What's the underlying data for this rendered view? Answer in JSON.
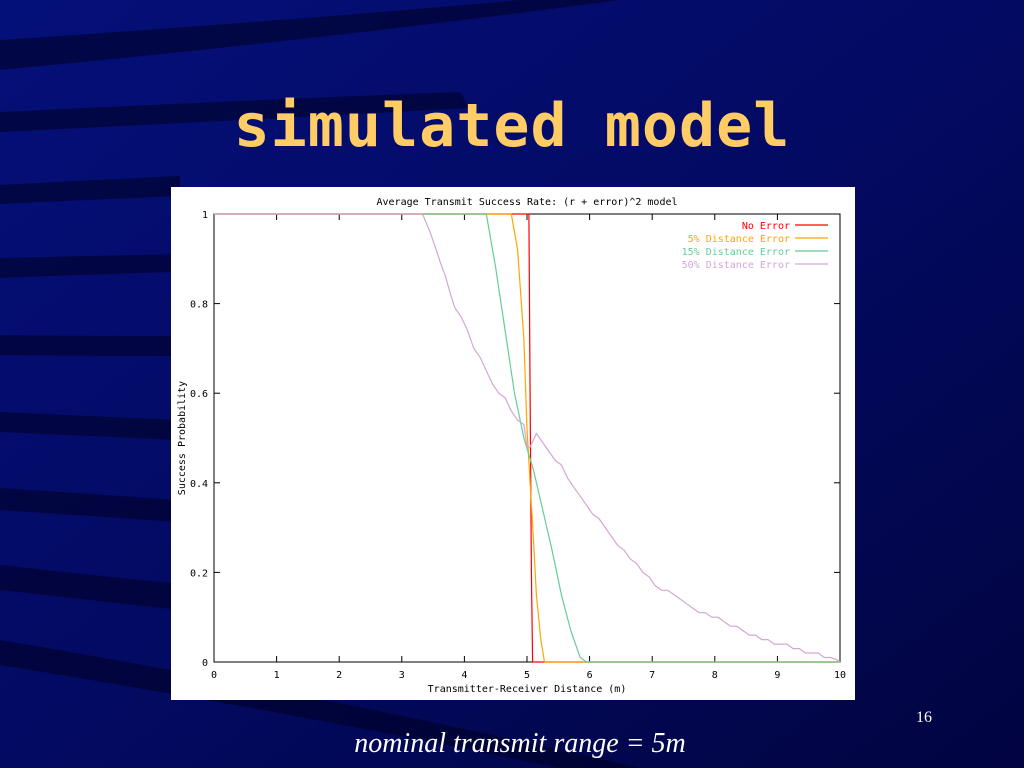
{
  "slide": {
    "title": "simulated model",
    "caption": "nominal transmit range = 5m",
    "page_number": "16",
    "colors": {
      "background": "#02064a",
      "title": "#ffcc66",
      "text": "#ffffff"
    }
  },
  "chart_data": {
    "type": "line",
    "title": "Average Transmit Success Rate: (r + error)^2 model",
    "xlabel": "Transmitter-Receiver Distance (m)",
    "ylabel": "Success Probability",
    "xlim": [
      0,
      10
    ],
    "ylim": [
      0,
      1
    ],
    "x_ticks": [
      "0",
      "1",
      "2",
      "3",
      "4",
      "5",
      "6",
      "7",
      "8",
      "9",
      "10"
    ],
    "y_ticks": [
      "0",
      "0.2",
      "0.4",
      "0.6",
      "0.8",
      "1"
    ],
    "grid": false,
    "legend_position": "top-right",
    "series": [
      {
        "name": "No Error",
        "color": "#ff0000",
        "points": [
          [
            0,
            1
          ],
          [
            5.03,
            1
          ],
          [
            5.05,
            0.6
          ],
          [
            5.07,
            0.2
          ],
          [
            5.09,
            0
          ],
          [
            10,
            0
          ]
        ]
      },
      {
        "name": "5% Distance Error",
        "color": "#ffa500",
        "points": [
          [
            0,
            1
          ],
          [
            4.75,
            1
          ],
          [
            4.85,
            0.92
          ],
          [
            4.95,
            0.72
          ],
          [
            5.0,
            0.52
          ],
          [
            5.05,
            0.4
          ],
          [
            5.1,
            0.28
          ],
          [
            5.15,
            0.15
          ],
          [
            5.22,
            0.05
          ],
          [
            5.28,
            0
          ],
          [
            10,
            0
          ]
        ]
      },
      {
        "name": "15% Distance Error",
        "color": "#66cc99",
        "points": [
          [
            0,
            1
          ],
          [
            4.35,
            1
          ],
          [
            4.5,
            0.88
          ],
          [
            4.65,
            0.74
          ],
          [
            4.8,
            0.6
          ],
          [
            4.95,
            0.5
          ],
          [
            5.1,
            0.43
          ],
          [
            5.25,
            0.34
          ],
          [
            5.4,
            0.25
          ],
          [
            5.55,
            0.15
          ],
          [
            5.7,
            0.07
          ],
          [
            5.85,
            0.01
          ],
          [
            5.95,
            0
          ],
          [
            10,
            0
          ]
        ]
      },
      {
        "name": "50% Distance Error",
        "color": "#d4a6d4",
        "points": [
          [
            0,
            1
          ],
          [
            3.33,
            1
          ],
          [
            3.45,
            0.96
          ],
          [
            3.55,
            0.92
          ],
          [
            3.62,
            0.89
          ],
          [
            3.7,
            0.86
          ],
          [
            3.78,
            0.82
          ],
          [
            3.85,
            0.79
          ],
          [
            3.95,
            0.77
          ],
          [
            4.05,
            0.74
          ],
          [
            4.15,
            0.7
          ],
          [
            4.25,
            0.68
          ],
          [
            4.35,
            0.65
          ],
          [
            4.45,
            0.62
          ],
          [
            4.55,
            0.6
          ],
          [
            4.65,
            0.59
          ],
          [
            4.75,
            0.56
          ],
          [
            4.85,
            0.54
          ],
          [
            4.95,
            0.53
          ],
          [
            5.0,
            0.48
          ],
          [
            5.05,
            0.48
          ],
          [
            5.15,
            0.51
          ],
          [
            5.25,
            0.49
          ],
          [
            5.35,
            0.47
          ],
          [
            5.45,
            0.45
          ],
          [
            5.55,
            0.44
          ],
          [
            5.65,
            0.41
          ],
          [
            5.75,
            0.39
          ],
          [
            5.85,
            0.37
          ],
          [
            5.95,
            0.35
          ],
          [
            6.05,
            0.33
          ],
          [
            6.15,
            0.32
          ],
          [
            6.25,
            0.3
          ],
          [
            6.35,
            0.28
          ],
          [
            6.45,
            0.26
          ],
          [
            6.55,
            0.25
          ],
          [
            6.65,
            0.23
          ],
          [
            6.75,
            0.22
          ],
          [
            6.85,
            0.2
          ],
          [
            6.95,
            0.19
          ],
          [
            7.05,
            0.17
          ],
          [
            7.15,
            0.16
          ],
          [
            7.25,
            0.16
          ],
          [
            7.35,
            0.15
          ],
          [
            7.45,
            0.14
          ],
          [
            7.55,
            0.13
          ],
          [
            7.65,
            0.12
          ],
          [
            7.75,
            0.11
          ],
          [
            7.85,
            0.11
          ],
          [
            7.95,
            0.1
          ],
          [
            8.05,
            0.1
          ],
          [
            8.15,
            0.09
          ],
          [
            8.25,
            0.08
          ],
          [
            8.35,
            0.08
          ],
          [
            8.45,
            0.07
          ],
          [
            8.55,
            0.06
          ],
          [
            8.65,
            0.06
          ],
          [
            8.75,
            0.05
          ],
          [
            8.85,
            0.05
          ],
          [
            8.95,
            0.04
          ],
          [
            9.05,
            0.04
          ],
          [
            9.15,
            0.04
          ],
          [
            9.25,
            0.03
          ],
          [
            9.35,
            0.03
          ],
          [
            9.45,
            0.02
          ],
          [
            9.55,
            0.02
          ],
          [
            9.65,
            0.02
          ],
          [
            9.75,
            0.01
          ],
          [
            9.85,
            0.01
          ],
          [
            9.95,
            0.005
          ],
          [
            10,
            0
          ]
        ]
      }
    ]
  }
}
